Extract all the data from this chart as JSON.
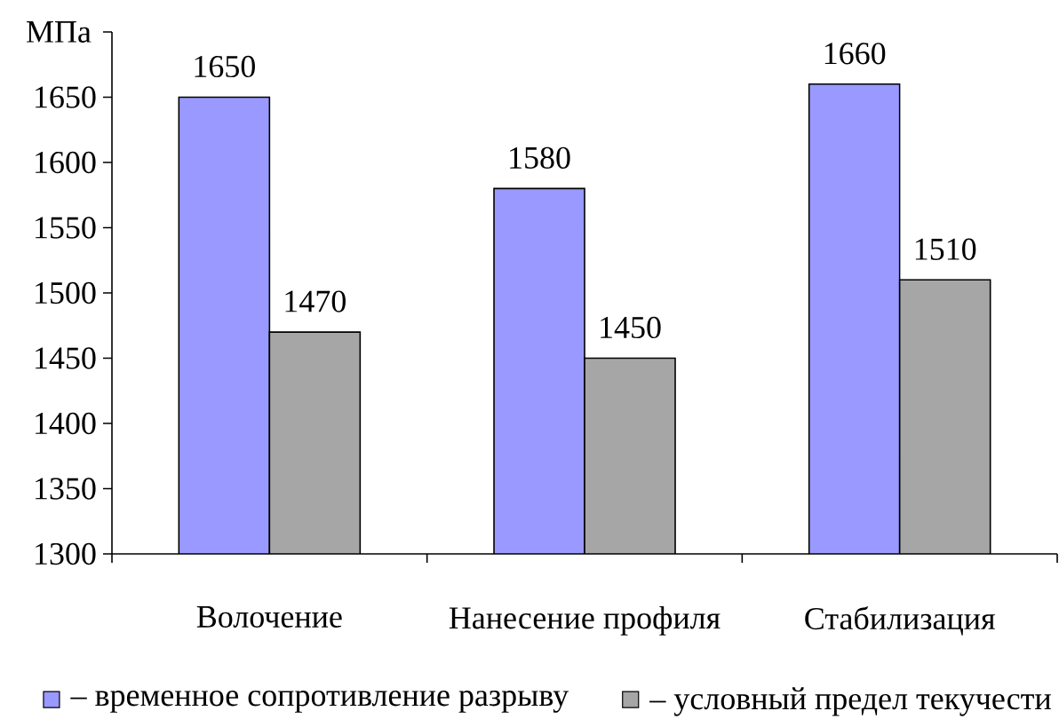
{
  "chart_data": {
    "type": "bar",
    "categories": [
      "Волочение",
      "Нанесение профиля",
      "Стабилизация"
    ],
    "series": [
      {
        "name": "– временное сопротивление разрыву",
        "color": "#9999ff",
        "values": [
          1650,
          1580,
          1660
        ]
      },
      {
        "name": "– условный предел текучести",
        "color": "#a6a6a6",
        "values": [
          1470,
          1450,
          1510
        ]
      }
    ],
    "ylabel": "МПа",
    "ylim": [
      1300,
      1700
    ],
    "yticks": [
      1300,
      1350,
      1400,
      1450,
      1500,
      1550,
      1600,
      1650,
      {
        "value": 1700,
        "label": null
      }
    ],
    "data_labels": true,
    "legend": "bottom"
  }
}
